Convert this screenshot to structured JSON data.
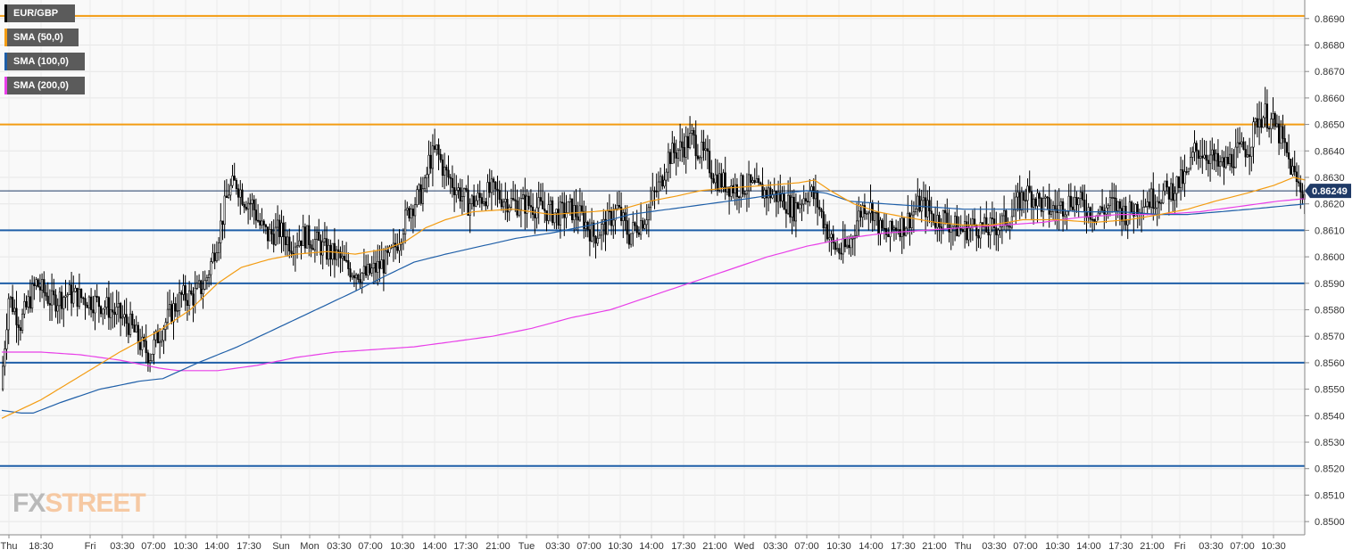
{
  "legend": [
    {
      "label": "EUR/GBP",
      "color": "#000000"
    },
    {
      "label": "SMA (50,0)",
      "color": "#f39c12"
    },
    {
      "label": "SMA (100,0)",
      "color": "#1f5fa8"
    },
    {
      "label": "SMA (200,0)",
      "color": "#e83fe8"
    }
  ],
  "logo": {
    "fx": "FX",
    "street": "STREET"
  },
  "chart_data": {
    "type": "candlestick",
    "symbol": "EUR/GBP",
    "ylim": [
      0.8495,
      0.8697
    ],
    "yticks": [
      "0.8500",
      "0.8510",
      "0.8520",
      "0.8530",
      "0.8540",
      "0.8550",
      "0.8560",
      "0.8570",
      "0.8580",
      "0.8590",
      "0.8600",
      "0.8610",
      "0.8620",
      "0.8630",
      "0.8640",
      "0.8650",
      "0.8660",
      "0.8670",
      "0.8680",
      "0.8690"
    ],
    "xticks": [
      "Thu",
      "18:30",
      "Fri",
      "03:30",
      "07:00",
      "10:30",
      "14:00",
      "17:30",
      "Sun",
      "Mon",
      "03:30",
      "07:00",
      "10:30",
      "14:00",
      "17:30",
      "21:00",
      "Tue",
      "03:30",
      "07:00",
      "10:30",
      "14:00",
      "17:30",
      "21:00",
      "Wed",
      "03:30",
      "07:00",
      "10:30",
      "14:00",
      "17:30",
      "21:00",
      "Thu",
      "03:30",
      "07:00",
      "10:30",
      "14:00",
      "17:30",
      "21:00",
      "Fri",
      "03:30",
      "07:00",
      "10:30"
    ],
    "current_price": "0.86249",
    "current_value": 0.86249,
    "horizontal_levels": [
      {
        "value": 0.8691,
        "color": "#f39c12"
      },
      {
        "value": 0.865,
        "color": "#f39c12"
      },
      {
        "value": 0.861,
        "color": "#1f5fa8"
      },
      {
        "value": 0.859,
        "color": "#1f5fa8"
      },
      {
        "value": 0.856,
        "color": "#1f5fa8"
      },
      {
        "value": 0.8521,
        "color": "#1f5fa8"
      }
    ],
    "price_path": [
      [
        0,
        0.855
      ],
      [
        4,
        0.8585
      ],
      [
        10,
        0.8575
      ],
      [
        18,
        0.859
      ],
      [
        26,
        0.8583
      ],
      [
        34,
        0.8586
      ],
      [
        44,
        0.8584
      ],
      [
        52,
        0.8582
      ],
      [
        60,
        0.8578
      ],
      [
        66,
        0.8574
      ],
      [
        72,
        0.8566
      ],
      [
        76,
        0.8563
      ],
      [
        80,
        0.857
      ],
      [
        86,
        0.8578
      ],
      [
        92,
        0.8585
      ],
      [
        98,
        0.8585
      ],
      [
        104,
        0.859
      ],
      [
        108,
        0.86
      ],
      [
        112,
        0.8612
      ],
      [
        116,
        0.8625
      ],
      [
        120,
        0.8628
      ],
      [
        124,
        0.8622
      ],
      [
        128,
        0.862
      ],
      [
        132,
        0.8612
      ],
      [
        136,
        0.8608
      ],
      [
        142,
        0.861
      ],
      [
        148,
        0.8605
      ],
      [
        154,
        0.8608
      ],
      [
        160,
        0.8606
      ],
      [
        166,
        0.8602
      ],
      [
        172,
        0.86
      ],
      [
        176,
        0.8596
      ],
      [
        180,
        0.8595
      ],
      [
        186,
        0.8593
      ],
      [
        192,
        0.8596
      ],
      [
        196,
        0.8598
      ],
      [
        200,
        0.8602
      ],
      [
        204,
        0.861
      ],
      [
        208,
        0.8618
      ],
      [
        212,
        0.8622
      ],
      [
        216,
        0.8626
      ],
      [
        218,
        0.8636
      ],
      [
        222,
        0.864
      ],
      [
        226,
        0.8632
      ],
      [
        230,
        0.8628
      ],
      [
        234,
        0.8624
      ],
      [
        238,
        0.862
      ],
      [
        244,
        0.8622
      ],
      [
        250,
        0.8625
      ],
      [
        256,
        0.8622
      ],
      [
        262,
        0.862
      ],
      [
        268,
        0.862
      ],
      [
        276,
        0.8618
      ],
      [
        284,
        0.8616
      ],
      [
        290,
        0.8618
      ],
      [
        296,
        0.8615
      ],
      [
        302,
        0.8608
      ],
      [
        308,
        0.8612
      ],
      [
        314,
        0.8618
      ],
      [
        320,
        0.8608
      ],
      [
        324,
        0.8612
      ],
      [
        328,
        0.8615
      ],
      [
        332,
        0.8622
      ],
      [
        336,
        0.8628
      ],
      [
        340,
        0.8638
      ],
      [
        344,
        0.864
      ],
      [
        348,
        0.8642
      ],
      [
        352,
        0.8645
      ],
      [
        356,
        0.864
      ],
      [
        360,
        0.8636
      ],
      [
        364,
        0.863
      ],
      [
        368,
        0.8628
      ],
      [
        374,
        0.8626
      ],
      [
        380,
        0.8627
      ],
      [
        386,
        0.8625
      ],
      [
        392,
        0.8624
      ],
      [
        398,
        0.8622
      ],
      [
        404,
        0.8618
      ],
      [
        408,
        0.8622
      ],
      [
        412,
        0.8625
      ],
      [
        416,
        0.862
      ],
      [
        420,
        0.8612
      ],
      [
        424,
        0.8604
      ],
      [
        428,
        0.8602
      ],
      [
        432,
        0.8604
      ],
      [
        436,
        0.8614
      ],
      [
        440,
        0.862
      ],
      [
        444,
        0.8618
      ],
      [
        448,
        0.861
      ],
      [
        452,
        0.8608
      ],
      [
        456,
        0.8612
      ],
      [
        460,
        0.8612
      ],
      [
        464,
        0.8616
      ],
      [
        468,
        0.862
      ],
      [
        472,
        0.8618
      ],
      [
        476,
        0.8614
      ],
      [
        480,
        0.8615
      ],
      [
        484,
        0.8612
      ],
      [
        490,
        0.861
      ],
      [
        496,
        0.8612
      ],
      [
        502,
        0.861
      ],
      [
        508,
        0.8612
      ],
      [
        514,
        0.8615
      ],
      [
        518,
        0.862
      ],
      [
        522,
        0.8624
      ],
      [
        526,
        0.8623
      ],
      [
        530,
        0.862
      ],
      [
        534,
        0.8618
      ],
      [
        538,
        0.8618
      ],
      [
        542,
        0.862
      ],
      [
        546,
        0.8622
      ],
      [
        550,
        0.862
      ],
      [
        554,
        0.8618
      ],
      [
        558,
        0.8616
      ],
      [
        562,
        0.8618
      ],
      [
        566,
        0.862
      ],
      [
        570,
        0.8618
      ],
      [
        574,
        0.8616
      ],
      [
        580,
        0.862
      ],
      [
        586,
        0.8622
      ],
      [
        592,
        0.8624
      ],
      [
        596,
        0.8625
      ],
      [
        600,
        0.8628
      ],
      [
        604,
        0.863
      ],
      [
        608,
        0.864
      ],
      [
        612,
        0.864
      ],
      [
        616,
        0.8638
      ],
      [
        620,
        0.8634
      ],
      [
        624,
        0.8635
      ],
      [
        628,
        0.8638
      ],
      [
        632,
        0.864
      ],
      [
        636,
        0.8642
      ],
      [
        640,
        0.8652
      ],
      [
        644,
        0.8654
      ],
      [
        648,
        0.865
      ],
      [
        652,
        0.8645
      ],
      [
        656,
        0.8636
      ],
      [
        660,
        0.8628
      ],
      [
        664,
        0.8624
      ]
    ],
    "sma50_path": [
      [
        0,
        0.8539
      ],
      [
        20,
        0.8546
      ],
      [
        40,
        0.8555
      ],
      [
        60,
        0.8564
      ],
      [
        80,
        0.8572
      ],
      [
        96,
        0.858
      ],
      [
        110,
        0.859
      ],
      [
        122,
        0.8596
      ],
      [
        136,
        0.8599
      ],
      [
        150,
        0.8601
      ],
      [
        166,
        0.8602
      ],
      [
        180,
        0.8601
      ],
      [
        196,
        0.8603
      ],
      [
        206,
        0.8606
      ],
      [
        216,
        0.8611
      ],
      [
        226,
        0.8614
      ],
      [
        240,
        0.8617
      ],
      [
        260,
        0.8618
      ],
      [
        280,
        0.8616
      ],
      [
        300,
        0.8617
      ],
      [
        316,
        0.8618
      ],
      [
        330,
        0.8621
      ],
      [
        344,
        0.8623
      ],
      [
        356,
        0.8625
      ],
      [
        370,
        0.8626
      ],
      [
        390,
        0.8627
      ],
      [
        406,
        0.8628
      ],
      [
        414,
        0.8629
      ],
      [
        422,
        0.8625
      ],
      [
        434,
        0.862
      ],
      [
        446,
        0.8617
      ],
      [
        460,
        0.8615
      ],
      [
        476,
        0.8613
      ],
      [
        490,
        0.8612
      ],
      [
        504,
        0.8612
      ],
      [
        520,
        0.8614
      ],
      [
        538,
        0.8614
      ],
      [
        556,
        0.8613
      ],
      [
        574,
        0.8614
      ],
      [
        590,
        0.8616
      ],
      [
        604,
        0.8618
      ],
      [
        618,
        0.8621
      ],
      [
        634,
        0.8624
      ],
      [
        648,
        0.8627
      ],
      [
        658,
        0.863
      ],
      [
        664,
        0.8629
      ]
    ],
    "sma100_path": [
      [
        0,
        0.8542
      ],
      [
        10,
        0.8541
      ],
      [
        16,
        0.8541
      ],
      [
        30,
        0.8545
      ],
      [
        50,
        0.855
      ],
      [
        70,
        0.8553
      ],
      [
        82,
        0.8554
      ],
      [
        100,
        0.856
      ],
      [
        120,
        0.8566
      ],
      [
        140,
        0.8573
      ],
      [
        160,
        0.858
      ],
      [
        180,
        0.8587
      ],
      [
        196,
        0.8593
      ],
      [
        210,
        0.8598
      ],
      [
        226,
        0.8601
      ],
      [
        244,
        0.8604
      ],
      [
        262,
        0.8607
      ],
      [
        280,
        0.8609
      ],
      [
        300,
        0.8612
      ],
      [
        320,
        0.8616
      ],
      [
        340,
        0.8618
      ],
      [
        360,
        0.862
      ],
      [
        380,
        0.8622
      ],
      [
        398,
        0.8624
      ],
      [
        410,
        0.8625
      ],
      [
        420,
        0.8624
      ],
      [
        432,
        0.8621
      ],
      [
        450,
        0.862
      ],
      [
        470,
        0.8619
      ],
      [
        490,
        0.8618
      ],
      [
        510,
        0.8618
      ],
      [
        530,
        0.8618
      ],
      [
        550,
        0.8617
      ],
      [
        570,
        0.8617
      ],
      [
        590,
        0.8616
      ],
      [
        604,
        0.8616
      ],
      [
        620,
        0.8617
      ],
      [
        636,
        0.8618
      ],
      [
        650,
        0.8619
      ],
      [
        664,
        0.862
      ]
    ],
    "sma200_path": [
      [
        0,
        0.8564
      ],
      [
        20,
        0.8564
      ],
      [
        40,
        0.8563
      ],
      [
        60,
        0.8561
      ],
      [
        80,
        0.8558
      ],
      [
        90,
        0.8557
      ],
      [
        110,
        0.8557
      ],
      [
        130,
        0.8559
      ],
      [
        150,
        0.8562
      ],
      [
        170,
        0.8564
      ],
      [
        190,
        0.8565
      ],
      [
        210,
        0.8566
      ],
      [
        230,
        0.8568
      ],
      [
        250,
        0.857
      ],
      [
        270,
        0.8573
      ],
      [
        290,
        0.8577
      ],
      [
        310,
        0.858
      ],
      [
        330,
        0.8585
      ],
      [
        350,
        0.859
      ],
      [
        370,
        0.8595
      ],
      [
        390,
        0.86
      ],
      [
        410,
        0.8604
      ],
      [
        430,
        0.8607
      ],
      [
        450,
        0.8609
      ],
      [
        470,
        0.861
      ],
      [
        490,
        0.8611
      ],
      [
        510,
        0.8612
      ],
      [
        530,
        0.8613
      ],
      [
        550,
        0.8615
      ],
      [
        570,
        0.8616
      ],
      [
        590,
        0.8616
      ],
      [
        610,
        0.8617
      ],
      [
        630,
        0.8619
      ],
      [
        650,
        0.8621
      ],
      [
        664,
        0.8622
      ]
    ]
  }
}
